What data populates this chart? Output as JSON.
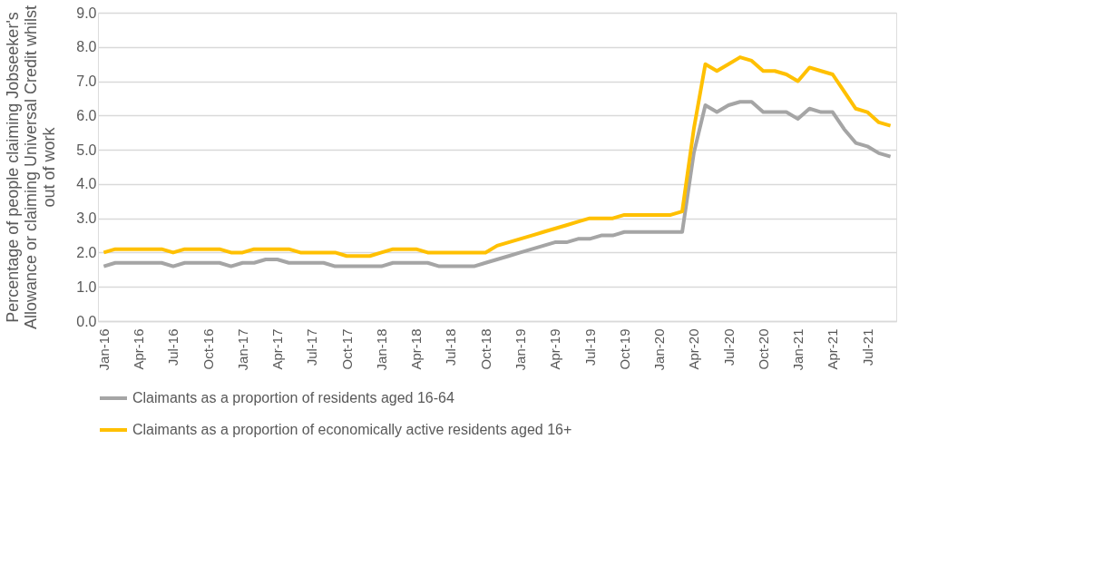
{
  "chart_data": {
    "type": "line",
    "ylabel": "Percentage of people claiming Jobseeker's Allowance or claiming Universal Credit whilst out of work",
    "categories": [
      "Jan-16",
      null,
      null,
      "Apr-16",
      null,
      null,
      "Jul-16",
      null,
      null,
      "Oct-16",
      null,
      null,
      "Jan-17",
      null,
      null,
      "Apr-17",
      null,
      null,
      "Jul-17",
      null,
      null,
      "Oct-17",
      null,
      null,
      "Jan-18",
      null,
      null,
      "Apr-18",
      null,
      null,
      "Jul-18",
      null,
      null,
      "Oct-18",
      null,
      null,
      "Jan-19",
      null,
      null,
      "Apr-19",
      null,
      null,
      "Jul-19",
      null,
      null,
      "Oct-19",
      null,
      null,
      "Jan-20",
      null,
      null,
      "Apr-20",
      null,
      null,
      "Jul-20",
      null,
      null,
      "Oct-20",
      null,
      null,
      "Jan-21",
      null,
      null,
      "Apr-21",
      null,
      null,
      "Jul-21",
      null,
      null
    ],
    "series": [
      {
        "name": "Claimants as a proportion of residents aged 16-64",
        "color": "#a5a5a5",
        "values": [
          1.6,
          1.7,
          1.7,
          1.7,
          1.7,
          1.7,
          1.6,
          1.7,
          1.7,
          1.7,
          1.7,
          1.6,
          1.7,
          1.7,
          1.8,
          1.8,
          1.7,
          1.7,
          1.7,
          1.7,
          1.6,
          1.6,
          1.6,
          1.6,
          1.6,
          1.7,
          1.7,
          1.7,
          1.7,
          1.6,
          1.6,
          1.6,
          1.6,
          1.7,
          1.8,
          1.9,
          2.0,
          2.1,
          2.2,
          2.3,
          2.3,
          2.4,
          2.4,
          2.5,
          2.5,
          2.6,
          2.6,
          2.6,
          2.6,
          2.6,
          2.6,
          4.9,
          6.3,
          6.1,
          6.3,
          6.4,
          6.4,
          6.1,
          6.1,
          6.1,
          5.9,
          6.2,
          6.1,
          6.1,
          5.6,
          5.2,
          5.1,
          4.9,
          4.8
        ]
      },
      {
        "name": "Claimants as a proportion of economically active residents aged 16+",
        "color": "#ffc000",
        "values": [
          2.0,
          2.1,
          2.1,
          2.1,
          2.1,
          2.1,
          2.0,
          2.1,
          2.1,
          2.1,
          2.1,
          2.0,
          2.0,
          2.1,
          2.1,
          2.1,
          2.1,
          2.0,
          2.0,
          2.0,
          2.0,
          1.9,
          1.9,
          1.9,
          2.0,
          2.1,
          2.1,
          2.1,
          2.0,
          2.0,
          2.0,
          2.0,
          2.0,
          2.0,
          2.2,
          2.3,
          2.4,
          2.5,
          2.6,
          2.7,
          2.8,
          2.9,
          3.0,
          3.0,
          3.0,
          3.1,
          3.1,
          3.1,
          3.1,
          3.1,
          3.2,
          5.6,
          7.5,
          7.3,
          7.5,
          7.7,
          7.6,
          7.3,
          7.3,
          7.2,
          7.0,
          7.4,
          7.3,
          7.2,
          6.7,
          6.2,
          6.1,
          5.8,
          5.7
        ]
      }
    ],
    "ylim": [
      0,
      9
    ],
    "yticks": [
      {
        "value": 0,
        "label": "0.0"
      },
      {
        "value": 1,
        "label": "1.0"
      },
      {
        "value": 2,
        "label": "2.0"
      },
      {
        "value": 3,
        "label": "3.0"
      },
      {
        "value": 4,
        "label": "4.0"
      },
      {
        "value": 5,
        "label": "5.0"
      },
      {
        "value": 6,
        "label": "6.0"
      },
      {
        "value": 7,
        "label": "7.0"
      },
      {
        "value": 8,
        "label": "8.0"
      },
      {
        "value": 9,
        "label": "9.0"
      }
    ],
    "grid": "y",
    "legend": "bottom",
    "marker": "none",
    "line_style": "solid"
  }
}
